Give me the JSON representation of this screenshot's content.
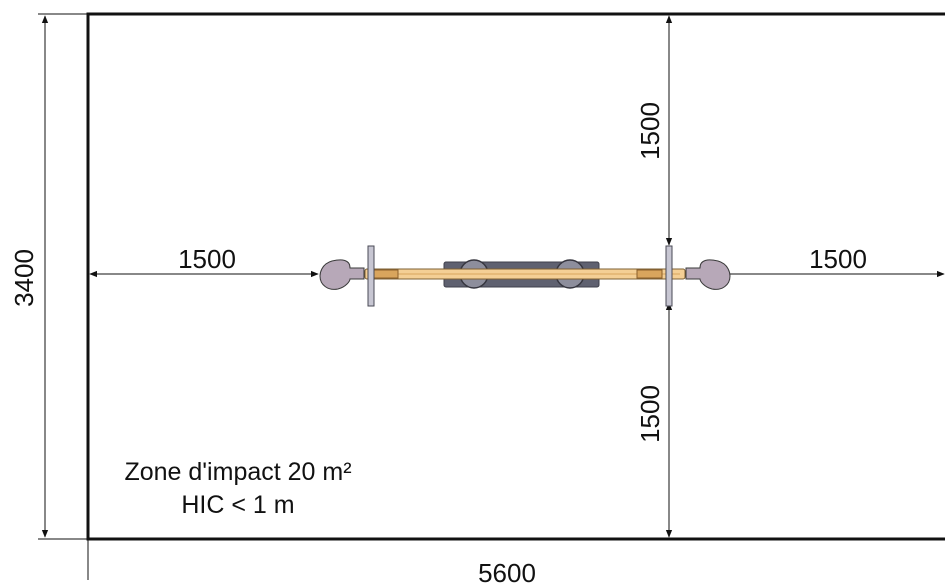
{
  "dimensions": {
    "total_height": "3400",
    "total_width": "5600",
    "left_clearance": "1500",
    "right_clearance": "1500",
    "top_clearance": "1500",
    "bottom_clearance": "1500"
  },
  "note": {
    "line1": "Zone d'impact 20 m²",
    "line2": "HIC < 1 m"
  },
  "colors": {
    "line": "#111111",
    "seat_wood": "#f4cf95",
    "seat_wood_dark": "#d9a55d",
    "handle_purple": "#b7a8b8",
    "base_slate": "#5f6170",
    "post_grey": "#c7c6d2"
  },
  "icons": {
    "arrow": "filled-arrowhead",
    "seesaw": "seesaw-top-view"
  }
}
